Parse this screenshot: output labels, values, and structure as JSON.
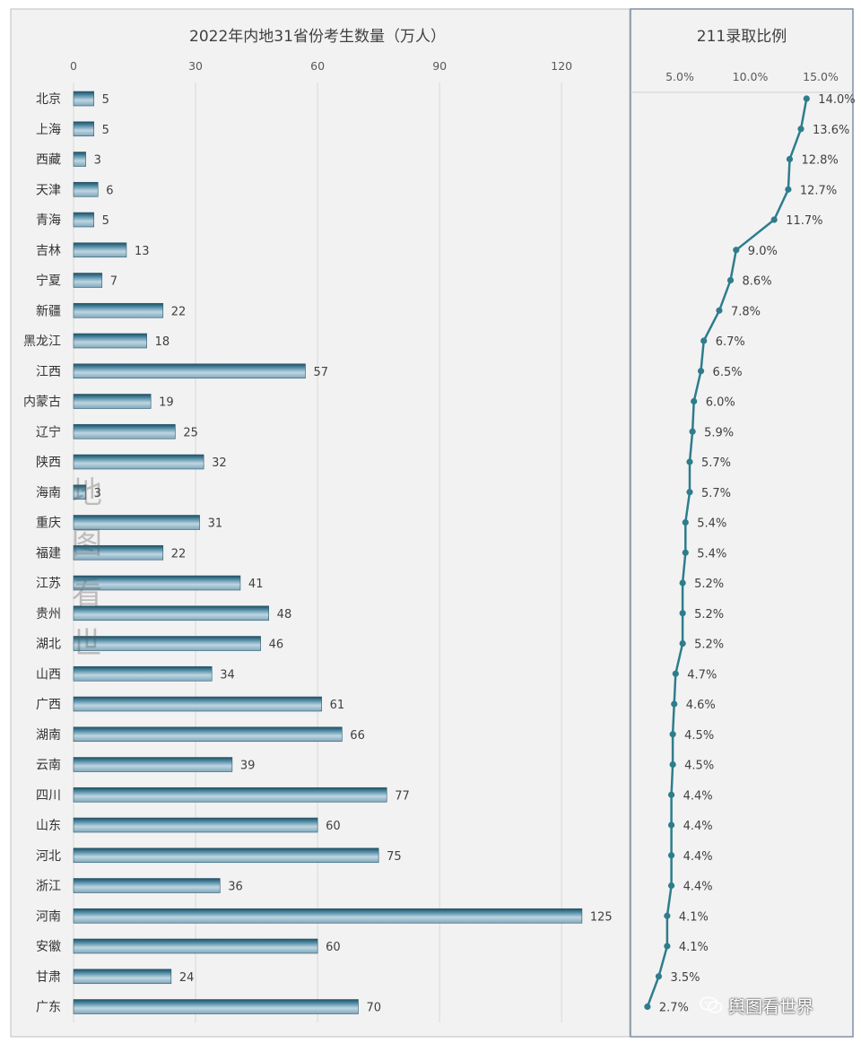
{
  "chart_data": [
    {
      "type": "bar",
      "orientation": "horizontal",
      "title": "2022年内地31省份考生数量（万人）",
      "xlim": [
        0,
        135
      ],
      "xticks": [
        "0",
        "30",
        "60",
        "90",
        "120"
      ],
      "tick_values": [
        0,
        30,
        60,
        90,
        120
      ],
      "categories": [
        "北京",
        "上海",
        "西藏",
        "天津",
        "青海",
        "吉林",
        "宁夏",
        "新疆",
        "黑龙江",
        "江西",
        "内蒙古",
        "辽宁",
        "陕西",
        "海南",
        "重庆",
        "福建",
        "江苏",
        "贵州",
        "湖北",
        "山西",
        "广西",
        "湖南",
        "云南",
        "四川",
        "山东",
        "河北",
        "浙江",
        "河南",
        "安徽",
        "甘肃",
        "广东"
      ],
      "values": [
        5,
        5,
        3,
        6,
        5,
        13,
        7,
        22,
        18,
        57,
        19,
        25,
        32,
        3,
        31,
        22,
        41,
        48,
        46,
        34,
        61,
        66,
        39,
        77,
        60,
        75,
        36,
        125,
        60,
        24,
        70
      ],
      "highlight": {
        "category": "河南",
        "color": "#c0392b"
      },
      "grid": true
    },
    {
      "type": "line",
      "title": "211录取比例",
      "xlim": [
        1.5,
        16.5
      ],
      "xticks": [
        "5.0%",
        "10.0%",
        "15.0%"
      ],
      "tick_values": [
        5,
        10,
        15
      ],
      "categories": [
        "北京",
        "上海",
        "西藏",
        "天津",
        "青海",
        "吉林",
        "宁夏",
        "新疆",
        "黑龙江",
        "江西",
        "内蒙古",
        "辽宁",
        "陕西",
        "海南",
        "重庆",
        "福建",
        "江苏",
        "贵州",
        "湖北",
        "山西",
        "广西",
        "湖南",
        "云南",
        "四川",
        "山东",
        "河北",
        "浙江",
        "河南",
        "安徽",
        "甘肃",
        "广东"
      ],
      "values": [
        14.0,
        13.6,
        12.8,
        12.7,
        11.7,
        9.0,
        8.6,
        7.8,
        6.7,
        6.5,
        6.0,
        5.9,
        5.7,
        5.7,
        5.4,
        5.4,
        5.2,
        5.2,
        5.2,
        4.7,
        4.6,
        4.5,
        4.5,
        4.4,
        4.4,
        4.4,
        4.4,
        4.1,
        4.1,
        3.5,
        2.7
      ],
      "labels": [
        "14.0%",
        "13.6%",
        "12.8%",
        "12.7%",
        "11.7%",
        "9.0%",
        "8.6%",
        "7.8%",
        "6.7%",
        "6.5%",
        "6.0%",
        "5.9%",
        "5.7%",
        "5.7%",
        "5.4%",
        "5.4%",
        "5.2%",
        "5.2%",
        "5.2%",
        "4.7%",
        "4.6%",
        "4.5%",
        "4.5%",
        "4.4%",
        "4.4%",
        "4.4%",
        "4.4%",
        "4.1%",
        "4.1%",
        "3.5%",
        "2.7%"
      ],
      "highlight": {
        "category": "河南",
        "color": "#c0392b"
      },
      "line_color": "#2e7d8c"
    }
  ],
  "watermark": [
    "地",
    "图",
    "看",
    "世"
  ],
  "brand": {
    "name": "舆图看世界",
    "icon": "wechat-icon"
  }
}
